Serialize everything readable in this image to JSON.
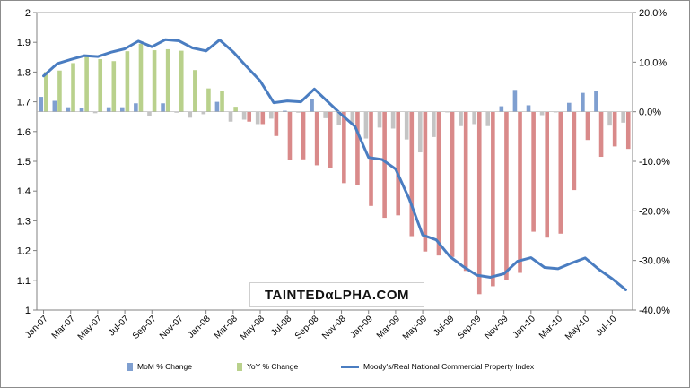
{
  "colors": {
    "mom": "#7f9fd0",
    "yoy": "#b9d18c",
    "neg": "#d98a8a",
    "gray": "#c4c4c4",
    "line": "#4a7dc1"
  },
  "watermark": "TAINTEDαLPHA.COM",
  "chart_data": {
    "type": "bar+line",
    "title": "",
    "categories": [
      "Jan-07",
      "Feb-07",
      "Mar-07",
      "Apr-07",
      "May-07",
      "Jun-07",
      "Jul-07",
      "Aug-07",
      "Sep-07",
      "Oct-07",
      "Nov-07",
      "Dec-07",
      "Jan-08",
      "Feb-08",
      "Mar-08",
      "Apr-08",
      "May-08",
      "Jun-08",
      "Jul-08",
      "Aug-08",
      "Sep-08",
      "Oct-08",
      "Nov-08",
      "Dec-08",
      "Jan-09",
      "Feb-09",
      "Mar-09",
      "Apr-09",
      "May-09",
      "Jun-09",
      "Jul-09",
      "Aug-09",
      "Sep-09",
      "Oct-09",
      "Nov-09",
      "Dec-09",
      "Jan-10",
      "Feb-10",
      "Mar-10",
      "Apr-10",
      "May-10",
      "Jun-10",
      "Jul-10",
      "Aug-10"
    ],
    "x_tick_labels": [
      "Jan-07",
      "Mar-07",
      "May-07",
      "Jul-07",
      "Sep-07",
      "Nov-07",
      "Jan-08",
      "Mar-08",
      "May-08",
      "Jul-08",
      "Sep-08",
      "Nov-08",
      "Jan-09",
      "Mar-09",
      "May-09",
      "Jul-09",
      "Sep-09",
      "Nov-09",
      "Jan-10",
      "Mar-10",
      "May-10",
      "Jul-10"
    ],
    "y_left": {
      "min": 1.0,
      "max": 2.0,
      "ticks": [
        "1",
        "1.1",
        "1.2",
        "1.3",
        "1.4",
        "1.5",
        "1.6",
        "1.7",
        "1.8",
        "1.9",
        "2"
      ]
    },
    "y_right": {
      "min": -40,
      "max": 20,
      "ticks": [
        "20.0%",
        "10.0%",
        "0.0%",
        "-10.0%",
        "-20.0%",
        "-30.0%",
        "-40.0%"
      ]
    },
    "series": [
      {
        "name": "MoM % Change",
        "axis": "right",
        "values": [
          3.0,
          2.2,
          0.9,
          0.8,
          -0.3,
          0.9,
          0.9,
          1.7,
          -0.8,
          1.7,
          -0.2,
          -1.2,
          -0.5,
          2.0,
          -2.0,
          -1.6,
          -2.5,
          -1.4,
          0.2,
          -0.2,
          2.6,
          -1.3,
          -2.6,
          -2.4,
          -5.4,
          -3.2,
          -3.4,
          -5.6,
          -8.2,
          -5.1,
          -0.1,
          -2.9,
          -2.5,
          -2.9,
          1.1,
          4.4,
          1.3,
          -0.7,
          -0.1,
          1.8,
          3.8,
          4.1,
          -2.8,
          -2.2
        ]
      },
      {
        "name": "YoY % Change",
        "axis": "right",
        "values": [
          8.0,
          8.3,
          9.8,
          11.5,
          10.6,
          10.2,
          12.2,
          13.7,
          12.4,
          12.6,
          12.3,
          8.4,
          4.7,
          4.1,
          1.0,
          -2.0,
          -2.5,
          -4.9,
          -9.7,
          -9.6,
          -10.8,
          -11.4,
          -14.4,
          -14.8,
          -19.0,
          -21.4,
          -20.9,
          -25.1,
          -28.2,
          -29.0,
          -29.3,
          -32.1,
          -36.8,
          -35.2,
          -34.0,
          -32.5,
          -24.2,
          -25.4,
          -24.6,
          -15.8,
          -5.7,
          -9.1,
          -7.0,
          -7.5
        ]
      },
      {
        "name": "Moody's/Real National Commercial Property Index",
        "axis": "left",
        "values": [
          1.787,
          1.828,
          1.842,
          1.855,
          1.852,
          1.867,
          1.878,
          1.904,
          1.885,
          1.909,
          1.905,
          1.881,
          1.871,
          1.908,
          1.868,
          1.818,
          1.77,
          1.697,
          1.703,
          1.7,
          1.743,
          1.7,
          1.657,
          1.617,
          1.513,
          1.506,
          1.474,
          1.374,
          1.252,
          1.236,
          1.18,
          1.146,
          1.117,
          1.11,
          1.122,
          1.164,
          1.176,
          1.143,
          1.139,
          1.158,
          1.175,
          1.137,
          1.105,
          1.068
        ]
      }
    ],
    "legend": [
      "MoM % Change",
      "YoY % Change",
      "Moody's/Real National Commercial Property Index"
    ],
    "legend_position": "bottom",
    "grid": false
  }
}
